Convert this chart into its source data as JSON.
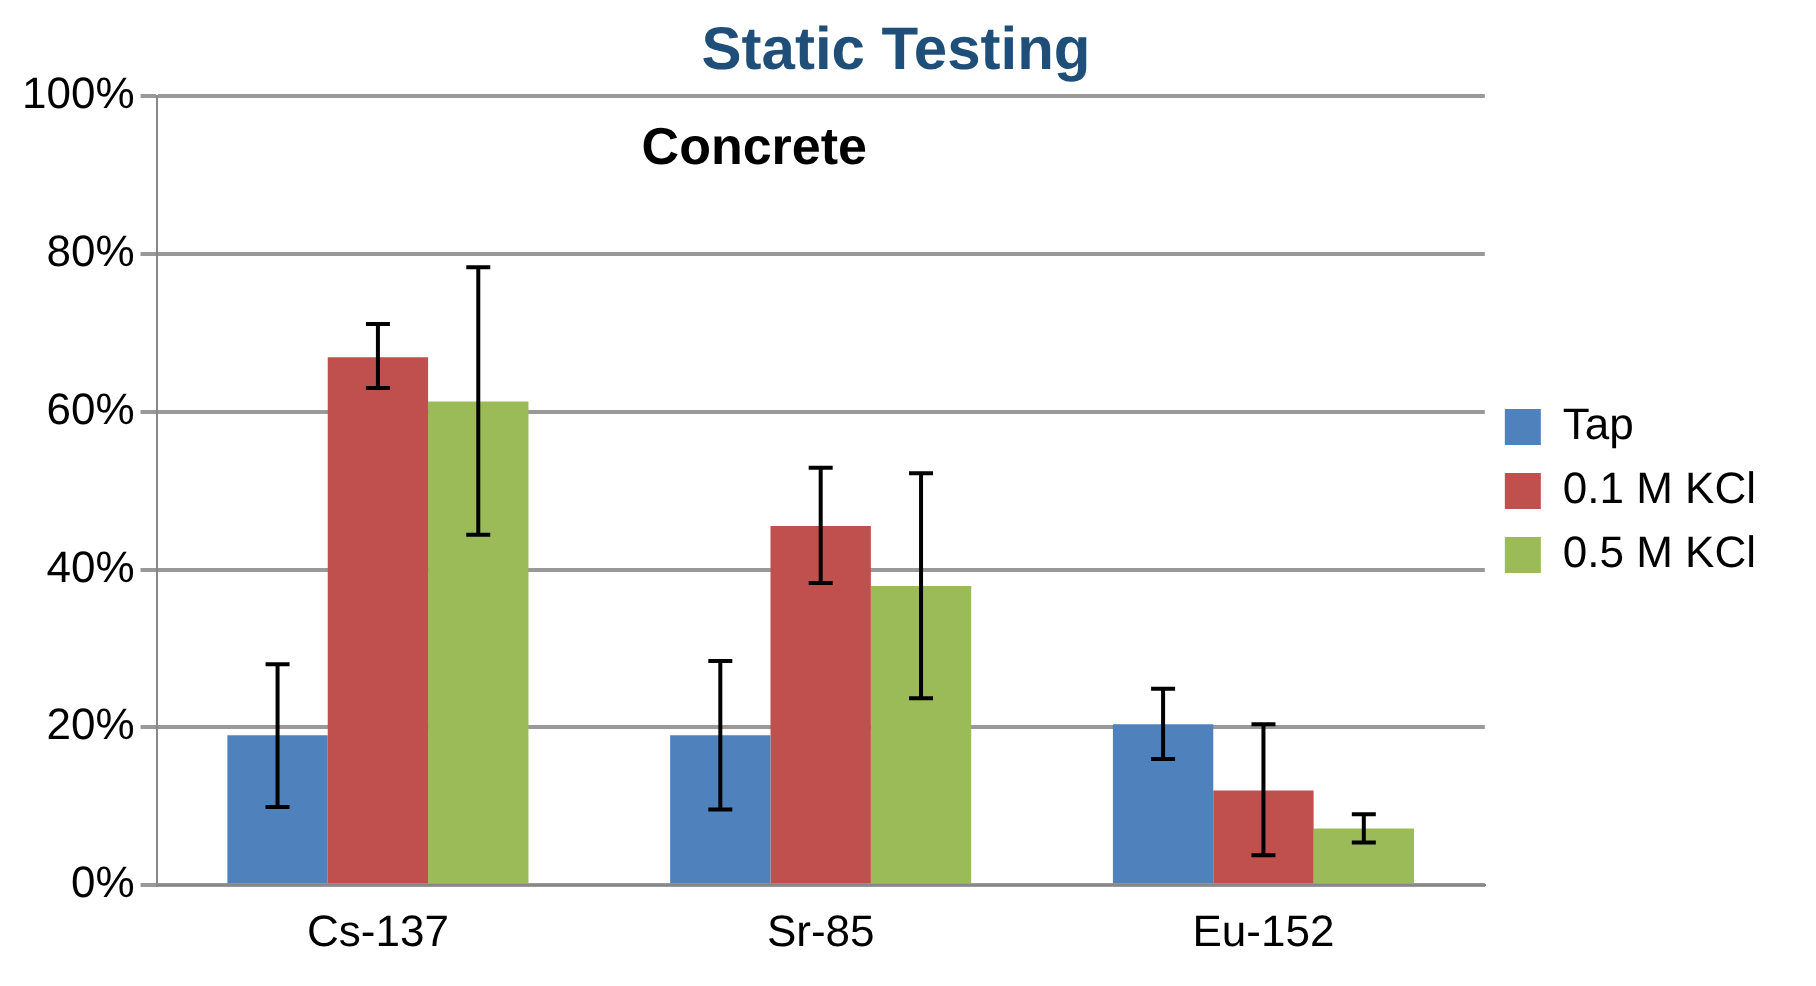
{
  "chart_data": {
    "type": "bar",
    "title": "Static Testing",
    "annotations": [
      "Concrete"
    ],
    "categories": [
      "Cs-137",
      "Sr-85",
      "Eu-152"
    ],
    "series": [
      {
        "name": "Tap",
        "color": "#4f81bd",
        "values": [
          19,
          19,
          20.4
        ],
        "errors": [
          [
            9.9,
            28
          ],
          [
            9.6,
            28.4
          ],
          [
            16,
            24.9
          ]
        ]
      },
      {
        "name": "0.1 M KCl",
        "color": "#c0504d",
        "values": [
          66.9,
          45.5,
          12
        ],
        "errors": [
          [
            63,
            71.1
          ],
          [
            38.3,
            52.9
          ],
          [
            3.8,
            20.4
          ]
        ]
      },
      {
        "name": "0.5 M KCl",
        "color": "#9bbb59",
        "values": [
          61.3,
          37.9,
          7.2
        ],
        "errors": [
          [
            44.4,
            78.3
          ],
          [
            23.7,
            52.2
          ],
          [
            5.4,
            9
          ]
        ]
      }
    ],
    "ylim": [
      0,
      100
    ],
    "yticks": [
      {
        "value": 0,
        "label": "0%"
      },
      {
        "value": 20,
        "label": "20%"
      },
      {
        "value": 40,
        "label": "40%"
      },
      {
        "value": 60,
        "label": "60%"
      },
      {
        "value": 80,
        "label": "80%"
      },
      {
        "value": 100,
        "label": "100%"
      }
    ],
    "grid": "y",
    "legend": "right"
  }
}
